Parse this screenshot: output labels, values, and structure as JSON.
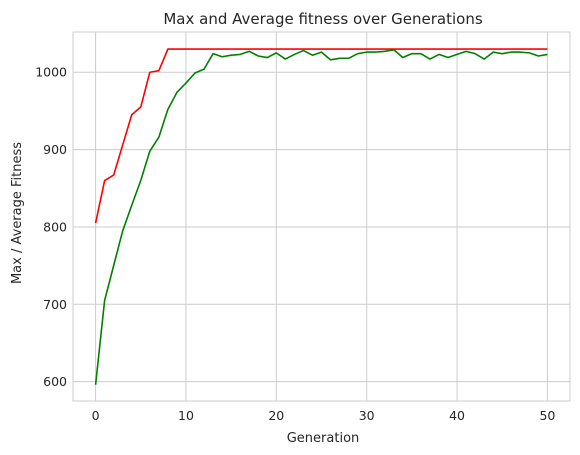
{
  "chart_data": {
    "type": "line",
    "title": "Max and Average fitness over Generations",
    "xlabel": "Generation",
    "ylabel": "Max / Average Fitness",
    "xlim": [
      -2.5,
      52.5
    ],
    "ylim": [
      575,
      1052
    ],
    "xticks": [
      0,
      10,
      20,
      30,
      40,
      50
    ],
    "yticks": [
      600,
      700,
      800,
      900,
      1000
    ],
    "grid": true,
    "series": [
      {
        "color": "#ff0000",
        "x": [
          0,
          1,
          2,
          3,
          4,
          5,
          6,
          7,
          8,
          9,
          10,
          11,
          12,
          13,
          14,
          15,
          16,
          17,
          18,
          19,
          20,
          21,
          22,
          23,
          24,
          25,
          26,
          27,
          28,
          29,
          30,
          31,
          32,
          33,
          34,
          35,
          36,
          37,
          38,
          39,
          40,
          41,
          42,
          43,
          44,
          45,
          46,
          47,
          48,
          49,
          50
        ],
        "values": [
          805,
          860,
          867,
          906,
          945,
          955,
          1000,
          1002,
          1030,
          1030,
          1030,
          1030,
          1030,
          1030,
          1030,
          1030,
          1030,
          1030,
          1030,
          1030,
          1030,
          1030,
          1030,
          1030,
          1030,
          1030,
          1030,
          1030,
          1030,
          1030,
          1030,
          1030,
          1030,
          1030,
          1030,
          1030,
          1030,
          1030,
          1030,
          1030,
          1030,
          1030,
          1030,
          1030,
          1030,
          1030,
          1030,
          1030,
          1030,
          1030,
          1030
        ]
      },
      {
        "color": "#008000",
        "x": [
          0,
          1,
          2,
          3,
          4,
          5,
          6,
          7,
          8,
          9,
          10,
          11,
          12,
          13,
          14,
          15,
          16,
          17,
          18,
          19,
          20,
          21,
          22,
          23,
          24,
          25,
          26,
          27,
          28,
          29,
          30,
          31,
          32,
          33,
          34,
          35,
          36,
          37,
          38,
          39,
          40,
          41,
          42,
          43,
          44,
          45,
          46,
          47,
          48,
          49,
          50
        ],
        "values": [
          596,
          705,
          750,
          795,
          828,
          860,
          898,
          916,
          952,
          974,
          986,
          999,
          1004,
          1024,
          1020,
          1022,
          1023,
          1027,
          1021,
          1019,
          1025,
          1017,
          1023,
          1028,
          1022,
          1026,
          1016,
          1018,
          1018,
          1024,
          1026,
          1026,
          1027,
          1029,
          1019,
          1024,
          1024,
          1017,
          1023,
          1019,
          1023,
          1027,
          1024,
          1017,
          1026,
          1024,
          1026,
          1026,
          1025,
          1021,
          1023
        ]
      }
    ]
  }
}
